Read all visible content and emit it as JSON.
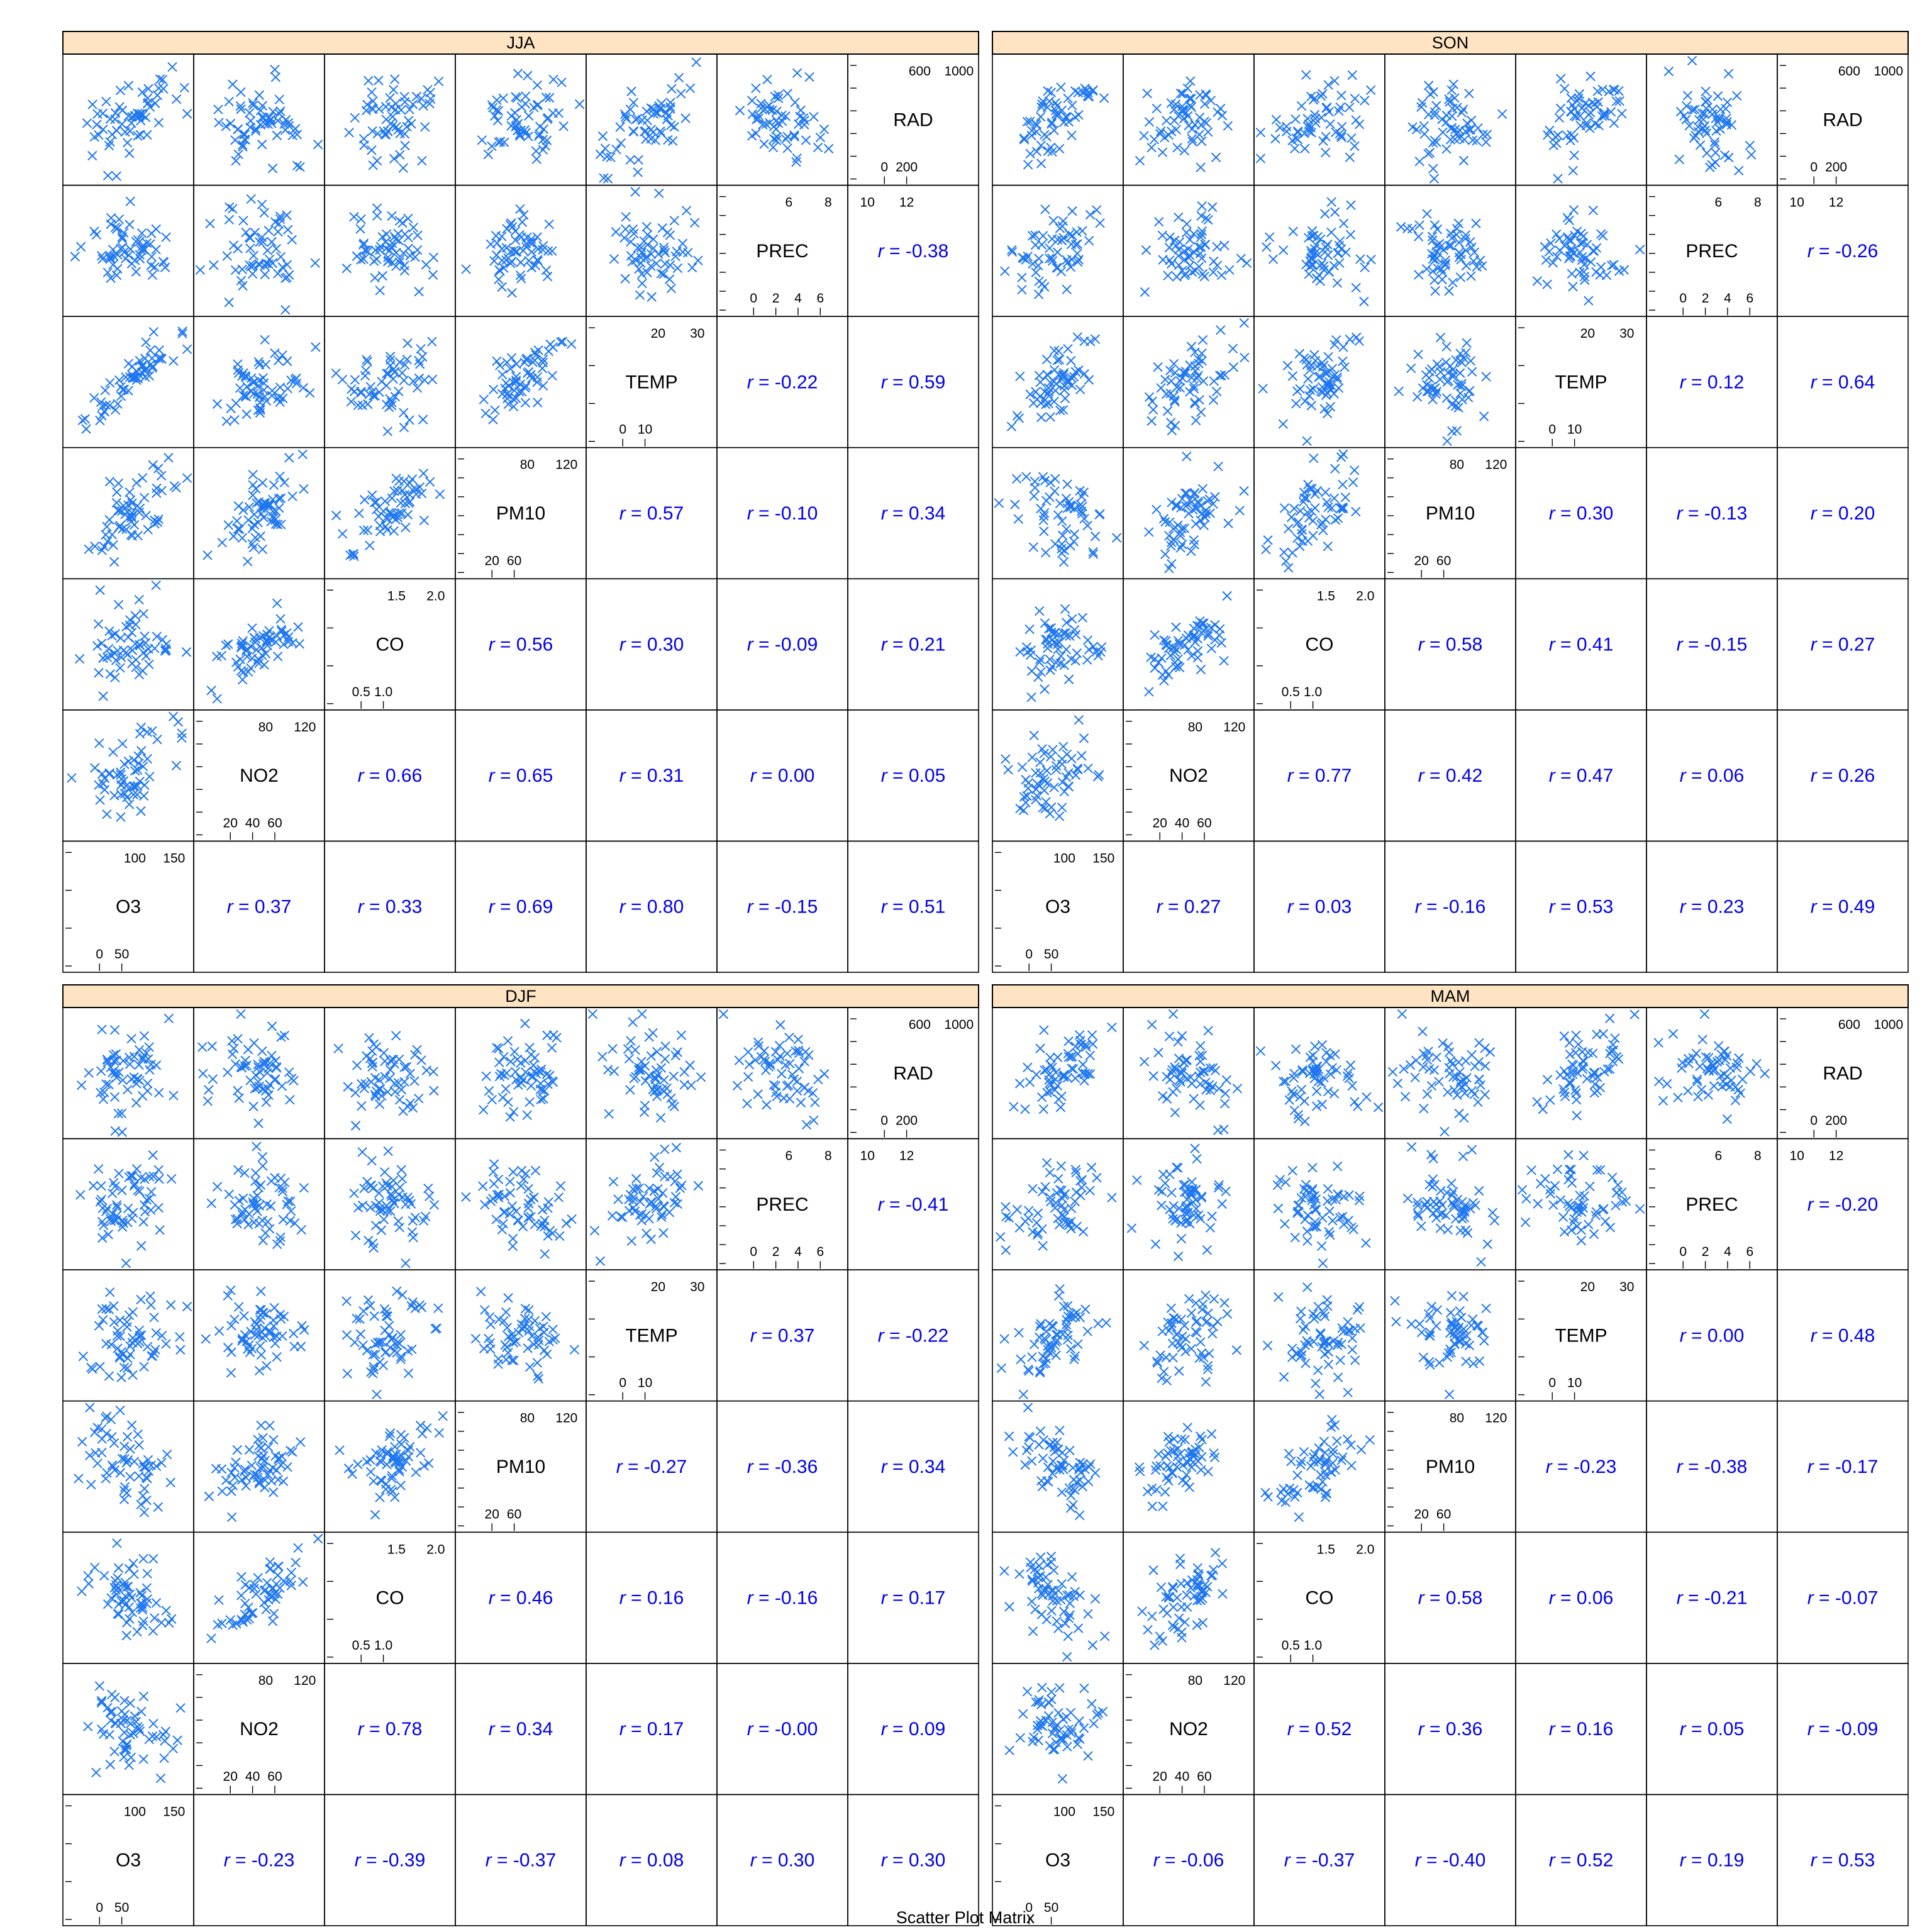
{
  "chart_data": {
    "type": "scatter",
    "xlabel": "Scatter Plot Matrix",
    "variables": [
      "O3",
      "NO2",
      "CO",
      "PM10",
      "TEMP",
      "PREC",
      "RAD"
    ],
    "marker_color": "#1f77f0",
    "r_color": "#0000ee",
    "strip_color": "#ffe4c4",
    "axis_ticks": {
      "O3": {
        "bottom": [
          "0",
          "50"
        ],
        "top": [
          "100",
          "150"
        ],
        "side": [
          "150",
          "100",
          "50",
          "0"
        ]
      },
      "NO2": {
        "bottom": [
          "20",
          "40",
          "60"
        ],
        "top": [
          "80",
          "120"
        ],
        "side": [
          "120",
          "100",
          "80",
          "60",
          "40",
          "20"
        ]
      },
      "CO": {
        "bottom": [
          "0.5",
          "1.0"
        ],
        "top": [
          "1.5",
          "2.0"
        ],
        "side": [
          "2.0",
          "1.5",
          "1.0",
          "0.5"
        ]
      },
      "PM10": {
        "bottom": [
          "20",
          "60"
        ],
        "top": [
          "80",
          "120"
        ],
        "side": [
          "140",
          "120",
          "100",
          "80",
          "60",
          "40",
          "20"
        ]
      },
      "TEMP": {
        "bottom": [
          "0",
          "10"
        ],
        "top": [
          "20",
          "30"
        ],
        "side": [
          "30",
          "20",
          "10",
          "0"
        ]
      },
      "PREC": {
        "bottom": [
          "0",
          "2",
          "4",
          "6"
        ],
        "top": [
          "6",
          "8",
          "10",
          "12"
        ],
        "side": [
          "12",
          "10",
          "8",
          "6",
          "4",
          "2",
          "0"
        ]
      },
      "RAD": {
        "bottom": [
          "0",
          "200"
        ],
        "top": [
          "600",
          "1000"
        ],
        "side": [
          "1000",
          "800",
          "600",
          "400",
          "200",
          "0"
        ]
      }
    },
    "panels": [
      {
        "label": "JJA",
        "r": {
          "NO2-O3": "0.37",
          "CO-O3": "0.33",
          "CO-NO2": "0.66",
          "PM10-O3": "0.69",
          "PM10-NO2": "0.65",
          "PM10-CO": "0.56",
          "TEMP-O3": "0.80",
          "TEMP-NO2": "0.31",
          "TEMP-CO": "0.30",
          "TEMP-PM10": "0.57",
          "PREC-O3": "-0.15",
          "PREC-NO2": "0.00",
          "PREC-CO": "-0.09",
          "PREC-PM10": "-0.10",
          "PREC-TEMP": "-0.22",
          "RAD-O3": "0.51",
          "RAD-NO2": "0.05",
          "RAD-CO": "0.21",
          "RAD-PM10": "0.34",
          "RAD-TEMP": "0.59",
          "RAD-PREC": "-0.38"
        }
      },
      {
        "label": "SON",
        "r": {
          "NO2-O3": "0.27",
          "CO-O3": "0.03",
          "CO-NO2": "0.77",
          "PM10-O3": "-0.16",
          "PM10-NO2": "0.42",
          "PM10-CO": "0.58",
          "TEMP-O3": "0.53",
          "TEMP-NO2": "0.47",
          "TEMP-CO": "0.41",
          "TEMP-PM10": "0.30",
          "PREC-O3": "0.23",
          "PREC-NO2": "0.06",
          "PREC-CO": "-0.15",
          "PREC-PM10": "-0.13",
          "PREC-TEMP": "0.12",
          "RAD-O3": "0.49",
          "RAD-NO2": "0.26",
          "RAD-CO": "0.27",
          "RAD-PM10": "0.20",
          "RAD-TEMP": "0.64",
          "RAD-PREC": "-0.26"
        }
      },
      {
        "label": "DJF",
        "r": {
          "NO2-O3": "-0.23",
          "CO-O3": "-0.39",
          "CO-NO2": "0.78",
          "PM10-O3": "-0.37",
          "PM10-NO2": "0.34",
          "PM10-CO": "0.46",
          "TEMP-O3": "0.08",
          "TEMP-NO2": "0.17",
          "TEMP-CO": "0.16",
          "TEMP-PM10": "-0.27",
          "PREC-O3": "0.30",
          "PREC-NO2": "-0.00",
          "PREC-CO": "-0.16",
          "PREC-PM10": "-0.36",
          "PREC-TEMP": "0.37",
          "RAD-O3": "0.30",
          "RAD-NO2": "0.09",
          "RAD-CO": "0.17",
          "RAD-PM10": "0.34",
          "RAD-TEMP": "-0.22",
          "RAD-PREC": "-0.41"
        }
      },
      {
        "label": "MAM",
        "r": {
          "NO2-O3": "-0.06",
          "CO-O3": "-0.37",
          "CO-NO2": "0.52",
          "PM10-O3": "-0.40",
          "PM10-NO2": "0.36",
          "PM10-CO": "0.58",
          "TEMP-O3": "0.52",
          "TEMP-NO2": "0.16",
          "TEMP-CO": "0.06",
          "TEMP-PM10": "-0.23",
          "PREC-O3": "0.19",
          "PREC-NO2": "0.05",
          "PREC-CO": "-0.21",
          "PREC-PM10": "-0.38",
          "PREC-TEMP": "0.00",
          "RAD-O3": "0.53",
          "RAD-NO2": "-0.09",
          "RAD-CO": "-0.07",
          "RAD-PM10": "-0.17",
          "RAD-TEMP": "0.48",
          "RAD-PREC": "-0.20"
        }
      }
    ]
  }
}
